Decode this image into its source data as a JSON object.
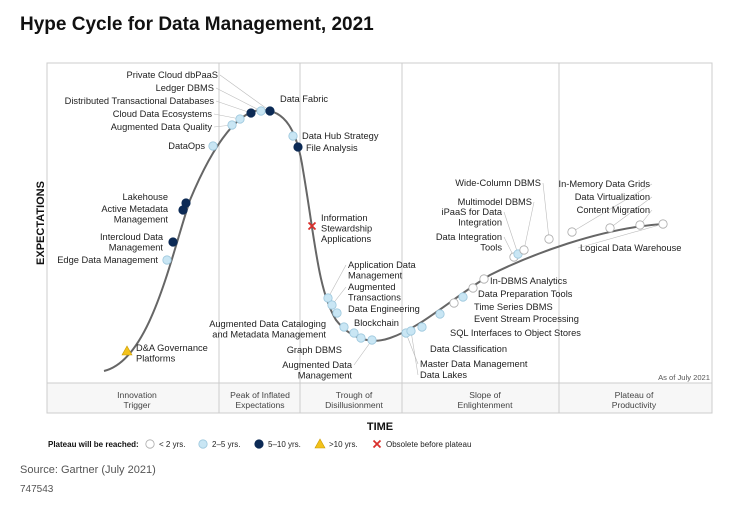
{
  "title": "Hype Cycle for Data Management, 2021",
  "source": "Source: Gartner (July 2021)",
  "doc_id": "747543",
  "as_of": "As of July 2021",
  "colors": {
    "lt2": "#ffffff",
    "y2to5": "#c9e6f4",
    "y5to10": "#0c2a55",
    "gt10": "#f3c21b",
    "obsolete": "#d9302c",
    "curve": "#666666",
    "grid": "#cccccc"
  },
  "chart_data": {
    "type": "hype-cycle",
    "xlabel": "TIME",
    "ylabel": "EXPECTATIONS",
    "phases": [
      [
        "Innovation",
        "Trigger"
      ],
      [
        "Peak of Inflated",
        "Expectations"
      ],
      [
        "Trough of",
        "Disillusionment"
      ],
      [
        "Slope of",
        "Enlightenment"
      ],
      [
        "Plateau of",
        "Productivity"
      ]
    ],
    "legend": {
      "title": "Plateau will be reached:",
      "items": [
        {
          "key": "lt2",
          "label": "< 2 yrs."
        },
        {
          "key": "y2to5",
          "label": "2–5 yrs."
        },
        {
          "key": "y5to10",
          "label": "5–10 yrs."
        },
        {
          "key": "gt10",
          "label": ">10 yrs."
        },
        {
          "key": "obsolete",
          "label": "Obsolete before plateau"
        }
      ]
    },
    "technologies": [
      {
        "lines": [
          "D&A Governance",
          "Platforms"
        ],
        "plateau": "gt10"
      },
      {
        "lines": [
          "Edge Data Management"
        ],
        "plateau": "y2to5"
      },
      {
        "lines": [
          "Intercloud Data",
          "Management"
        ],
        "plateau": "y5to10"
      },
      {
        "lines": [
          "Active Metadata",
          "Management"
        ],
        "plateau": "y5to10"
      },
      {
        "lines": [
          "Lakehouse"
        ],
        "plateau": "y5to10"
      },
      {
        "lines": [
          "DataOps"
        ],
        "plateau": "y2to5"
      },
      {
        "lines": [
          "Augmented Data Quality"
        ],
        "plateau": "y2to5"
      },
      {
        "lines": [
          "Cloud Data Ecosystems"
        ],
        "plateau": "y2to5"
      },
      {
        "lines": [
          "Distributed Transactional Databases"
        ],
        "plateau": "y5to10"
      },
      {
        "lines": [
          "Ledger DBMS"
        ],
        "plateau": "y2to5"
      },
      {
        "lines": [
          "Private Cloud dbPaaS"
        ],
        "plateau": "y2to5"
      },
      {
        "lines": [
          "Data Fabric"
        ],
        "plateau": "y5to10"
      },
      {
        "lines": [
          "Data Hub Strategy"
        ],
        "plateau": "y2to5"
      },
      {
        "lines": [
          "File Analysis"
        ],
        "plateau": "y5to10"
      },
      {
        "lines": [
          "Information",
          "Stewardship",
          "Applications"
        ],
        "plateau": "obsolete"
      },
      {
        "lines": [
          "Application Data",
          "Management"
        ],
        "plateau": "y2to5"
      },
      {
        "lines": [
          "Augmented",
          "Transactions"
        ],
        "plateau": "y2to5"
      },
      {
        "lines": [
          "Data Engineering"
        ],
        "plateau": "y2to5"
      },
      {
        "lines": [
          "Augmented Data Cataloging",
          "and Metadata Management"
        ],
        "plateau": "y2to5"
      },
      {
        "lines": [
          "Blockchain"
        ],
        "plateau": "y2to5"
      },
      {
        "lines": [
          "Graph DBMS"
        ],
        "plateau": "y2to5"
      },
      {
        "lines": [
          "Augmented Data",
          "Management"
        ],
        "plateau": "y2to5"
      },
      {
        "lines": [
          "Master Data Management"
        ],
        "plateau": "y2to5"
      },
      {
        "lines": [
          "Data Lakes"
        ],
        "plateau": "y2to5"
      },
      {
        "lines": [
          "Data Classification"
        ],
        "plateau": "y2to5"
      },
      {
        "lines": [
          "SQL Interfaces to Object Stores"
        ],
        "plateau": "y2to5"
      },
      {
        "lines": [
          "Event Stream Processing"
        ],
        "plateau": "lt2"
      },
      {
        "lines": [
          "Time Series DBMS"
        ],
        "plateau": "y2to5"
      },
      {
        "lines": [
          "Data Preparation Tools"
        ],
        "plateau": "lt2"
      },
      {
        "lines": [
          "In-DBMS Analytics"
        ],
        "plateau": "lt2"
      },
      {
        "lines": [
          "Data Integration",
          "Tools"
        ],
        "plateau": "lt2"
      },
      {
        "lines": [
          "iPaaS for Data",
          "Integration"
        ],
        "plateau": "y2to5"
      },
      {
        "lines": [
          "Multimodel DBMS"
        ],
        "plateau": "lt2"
      },
      {
        "lines": [
          "Wide-Column DBMS"
        ],
        "plateau": "lt2"
      },
      {
        "lines": [
          "In-Memory Data Grids"
        ],
        "plateau": "lt2"
      },
      {
        "lines": [
          "Data Virtualization"
        ],
        "plateau": "lt2"
      },
      {
        "lines": [
          "Content Migration"
        ],
        "plateau": "lt2"
      },
      {
        "lines": [
          "Logical Data Warehouse"
        ],
        "plateau": "lt2"
      }
    ]
  }
}
